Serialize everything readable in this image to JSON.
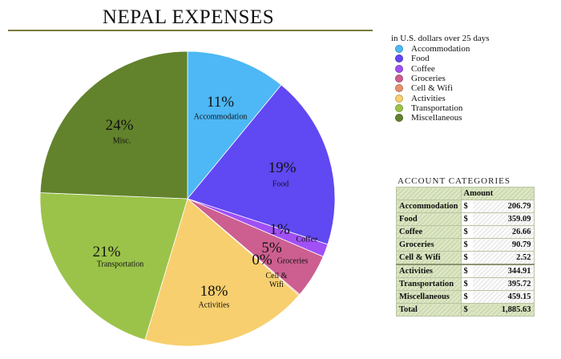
{
  "chart_data": {
    "type": "pie",
    "title": "NEPAL EXPENSES",
    "subtitle": "in U.S. dollars over 25 days",
    "legend_position": "right",
    "categories": [
      "Accommodation",
      "Food",
      "Coffee",
      "Groceries",
      "Cell & Wifi",
      "Activities",
      "Transportation",
      "Miscellaneous"
    ],
    "slice_labels": [
      "Accommodation",
      "Food",
      "Coffee",
      "Groceries",
      "Cell & Wifi",
      "Activities",
      "Transportation",
      "Misc."
    ],
    "values": [
      206.79,
      359.09,
      26.66,
      90.79,
      2.52,
      344.91,
      395.72,
      459.15
    ],
    "percent_labels": [
      "11%",
      "19%",
      "1%",
      "5%",
      "0%",
      "18%",
      "21%",
      "24%"
    ],
    "colors": [
      "#4db8f5",
      "#6048f2",
      "#a050f5",
      "#cc5f8f",
      "#e89070",
      "#f7cf6e",
      "#9bc34a",
      "#62822c"
    ],
    "start_angle": "top, clockwise"
  },
  "table": {
    "title": "ACCOUNT CATEGORIES",
    "header": "Amount",
    "currency": "$",
    "rows": [
      {
        "label": "Accommodation",
        "value": "206.79"
      },
      {
        "label": "Food",
        "value": "359.09"
      },
      {
        "label": "Coffee",
        "value": "26.66"
      },
      {
        "label": "Groceries",
        "value": "90.79"
      },
      {
        "label": "Cell & Wifi",
        "value": "2.52"
      },
      {
        "label": "Activities",
        "value": "344.91"
      },
      {
        "label": "Transportation",
        "value": "395.72"
      },
      {
        "label": "Miscellaneous",
        "value": "459.15"
      }
    ],
    "total_label": "Total",
    "total_value": "1,885.63"
  }
}
